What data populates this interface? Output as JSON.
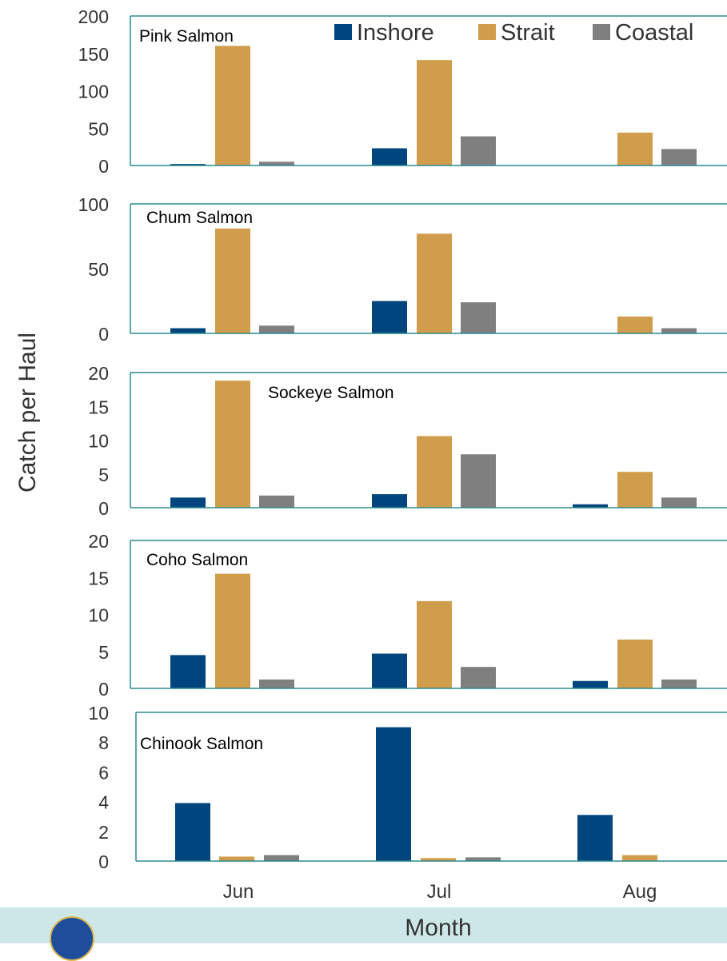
{
  "chart_data": {
    "type": "bar",
    "ylabel": "Catch per Haul",
    "xlabel": "Month",
    "categories": [
      "Jun",
      "Jul",
      "Aug"
    ],
    "legend": {
      "placement": "top-right",
      "entries": [
        {
          "name": "Inshore",
          "color": "#00457e"
        },
        {
          "name": "Strait",
          "color": "#cf9d4b"
        },
        {
          "name": "Coastal",
          "color": "#7f7f7f"
        }
      ]
    },
    "panels": [
      {
        "title": "Pink Salmon",
        "ylim": [
          0,
          200
        ],
        "yticks": [
          "0",
          "50",
          "100",
          "150",
          "200"
        ],
        "series": [
          {
            "name": "Inshore",
            "values": [
              2,
              23,
              0
            ]
          },
          {
            "name": "Strait",
            "values": [
              160,
              141,
              44
            ]
          },
          {
            "name": "Coastal",
            "values": [
              5,
              39,
              22
            ]
          }
        ]
      },
      {
        "title": "Chum Salmon",
        "ylim": [
          0,
          100
        ],
        "yticks": [
          "0",
          "50",
          "100"
        ],
        "series": [
          {
            "name": "Inshore",
            "values": [
              4,
              25,
              0
            ]
          },
          {
            "name": "Strait",
            "values": [
              81,
              77,
              13
            ]
          },
          {
            "name": "Coastal",
            "values": [
              6,
              24,
              4
            ]
          }
        ]
      },
      {
        "title": "Sockeye Salmon",
        "ylim": [
          0,
          20
        ],
        "yticks": [
          "0",
          "5",
          "10",
          "15",
          "20"
        ],
        "series": [
          {
            "name": "Inshore",
            "values": [
              1.5,
              2,
              0.5
            ]
          },
          {
            "name": "Strait",
            "values": [
              18.8,
              10.6,
              5.3
            ]
          },
          {
            "name": "Coastal",
            "values": [
              1.8,
              7.9,
              1.5
            ]
          }
        ]
      },
      {
        "title": "Coho Salmon",
        "ylim": [
          0,
          20
        ],
        "yticks": [
          "0",
          "5",
          "10",
          "15",
          "20"
        ],
        "series": [
          {
            "name": "Inshore",
            "values": [
              4.5,
              4.7,
              1
            ]
          },
          {
            "name": "Strait",
            "values": [
              15.5,
              11.8,
              6.6
            ]
          },
          {
            "name": "Coastal",
            "values": [
              1.2,
              2.9,
              1.2
            ]
          }
        ]
      },
      {
        "title": "Chinook Salmon",
        "ylim": [
          0,
          10
        ],
        "yticks": [
          "0",
          "2",
          "4",
          "6",
          "8",
          "10"
        ],
        "series": [
          {
            "name": "Inshore",
            "values": [
              3.9,
              9.0,
              3.1
            ]
          },
          {
            "name": "Strait",
            "values": [
              0.3,
              0.2,
              0.4
            ]
          },
          {
            "name": "Coastal",
            "values": [
              0.4,
              0.25,
              0
            ]
          }
        ]
      }
    ]
  }
}
